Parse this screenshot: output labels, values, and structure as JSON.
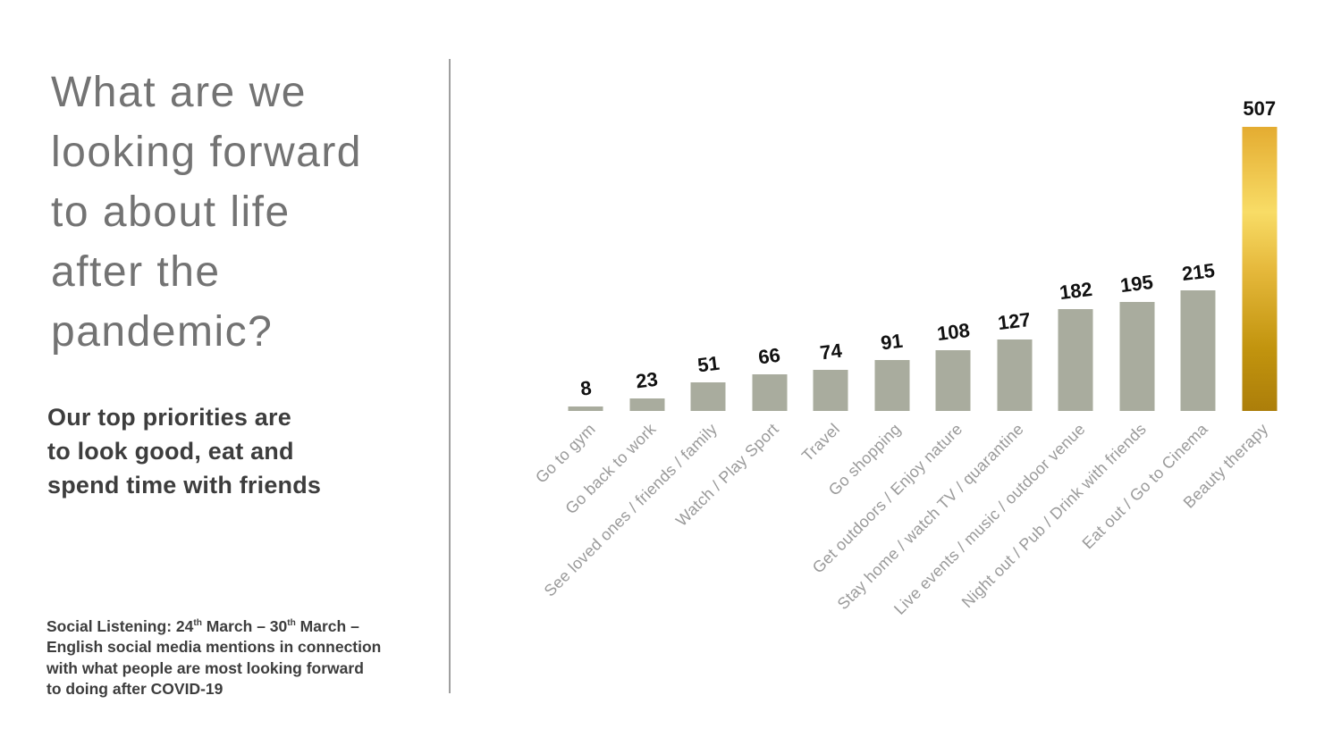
{
  "left_panel": {
    "title_lines": [
      "What are we",
      "looking forward",
      "to about life",
      "after the",
      "pandemic?"
    ],
    "subtitle_lines": [
      "Our top priorities are",
      "to look good, eat and",
      "spend time with friends"
    ],
    "footnote": {
      "seg1": "Social Listening: 24",
      "sup1": "th",
      "seg2": " March – 30",
      "sup2": "th",
      "seg3": " March –",
      "line2": "English social media mentions in connection",
      "line3": "with what people are most looking forward",
      "line4": "to doing after COVID-19"
    }
  },
  "chart_data": {
    "type": "bar",
    "title": "What are we looking forward to about life after the pandemic?",
    "categories": [
      "Go to gym",
      "Go back to work",
      "See loved ones / friends / family",
      "Watch / Play Sport",
      "Travel",
      "Go shopping",
      "Get outdoors / Enjoy nature",
      "Stay home / watch TV / quarantine",
      "Live events / music / outdoor venue",
      "Night out / Pub / Drink with friends",
      "Eat out / Go to Cinema",
      "Beauty therapy"
    ],
    "values": [
      8,
      23,
      51,
      66,
      74,
      91,
      108,
      127,
      182,
      195,
      215,
      507
    ],
    "xlabel": "",
    "ylabel": "",
    "ylim": [
      0,
      507
    ],
    "grid": false,
    "legend": null,
    "value_labels_shown": true,
    "category_label_angle_deg": 45,
    "bar_color": "#A9AC9E",
    "highlight_index": 11,
    "highlight_gradient": [
      [
        0,
        "#E4AC31"
      ],
      [
        30,
        "#F8DC66"
      ],
      [
        50,
        "#E6B93C"
      ],
      [
        78,
        "#C2940E"
      ],
      [
        100,
        "#AC7E0A"
      ]
    ]
  },
  "colors": {
    "background": "#FFFFFF",
    "divider": "#9F9F9F",
    "title_text": "#737373",
    "body_text": "#3D3D3D",
    "value_label": "#111111",
    "category_label": "#9A9A9A",
    "bar": "#A9AC9E",
    "highlight_gold_top": "#E4AC31",
    "highlight_gold_bright": "#F8DC66",
    "highlight_gold_bottom": "#AC7E0A"
  }
}
